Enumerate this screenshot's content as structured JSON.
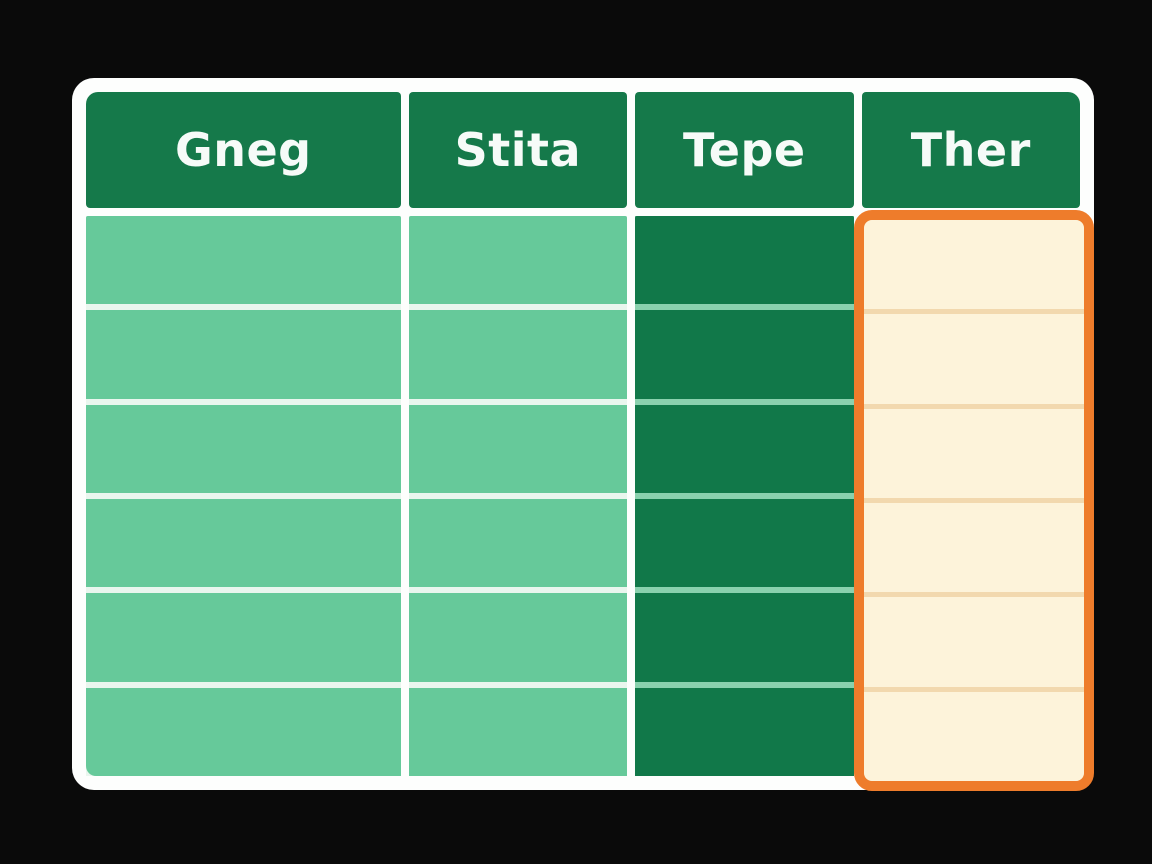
{
  "figure": {
    "kind": "table-graphic",
    "row_count": 6,
    "highlighted_column": "Ther"
  },
  "table": {
    "columns": [
      {
        "label": "Gneg"
      },
      {
        "label": "Stita"
      },
      {
        "label": "Tepe"
      },
      {
        "label": "Ther"
      }
    ]
  },
  "chart_data": {
    "type": "table",
    "columns": [
      "Gneg",
      "Stita",
      "Tepe",
      "Ther"
    ],
    "rows": [
      [
        "",
        "",
        "",
        ""
      ],
      [
        "",
        "",
        "",
        ""
      ],
      [
        "",
        "",
        "",
        ""
      ],
      [
        "",
        "",
        "",
        ""
      ],
      [
        "",
        "",
        "",
        ""
      ],
      [
        "",
        "",
        "",
        ""
      ]
    ],
    "layout": {
      "header_row": true,
      "body_cells_empty": true,
      "highlight": {
        "column": "Ther",
        "style": "thick orange rounded selection border around body cells"
      }
    }
  },
  "colors": {
    "bg-black": "#0a0a0a",
    "frame-white": "#fdfefd",
    "header-green": "#15794a",
    "header-text": "#f6fbf8",
    "cell-light-green": "#66c99a",
    "cell-dark-green": "#117849",
    "cell-cream": "#fdf3da",
    "row-gap-light": "#e9f6ee",
    "row-gap-mint": "#8ad1ae",
    "row-gap-tan": "#f2d8ae",
    "highlight-border": "#ee7c2b"
  }
}
